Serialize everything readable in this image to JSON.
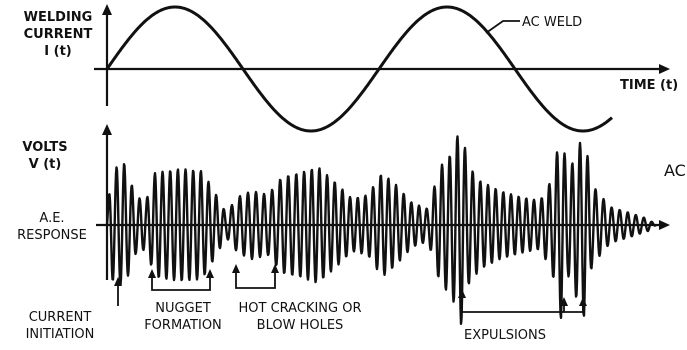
{
  "top": {
    "current_label": [
      "WELDING",
      "CURRENT",
      "I (t)"
    ],
    "time_label": "TIME (t)",
    "ac_weld_label": "AC WELD"
  },
  "bottom": {
    "volts_label": [
      "VOLTS",
      "V (t)"
    ],
    "ae_label": [
      "A.E.",
      "RESPONSE"
    ],
    "edge_label": "AC"
  },
  "annotations": {
    "current_initiation": [
      "CURRENT",
      "INITIATION"
    ],
    "nugget_formation": [
      "NUGGET",
      "FORMATION"
    ],
    "hot_cracking": [
      "HOT CRACKING OR",
      "BLOW HOLES"
    ],
    "expulsions": "EXPULSIONS"
  },
  "colors": {
    "ink": "#111111",
    "background": "#ffffff"
  }
}
